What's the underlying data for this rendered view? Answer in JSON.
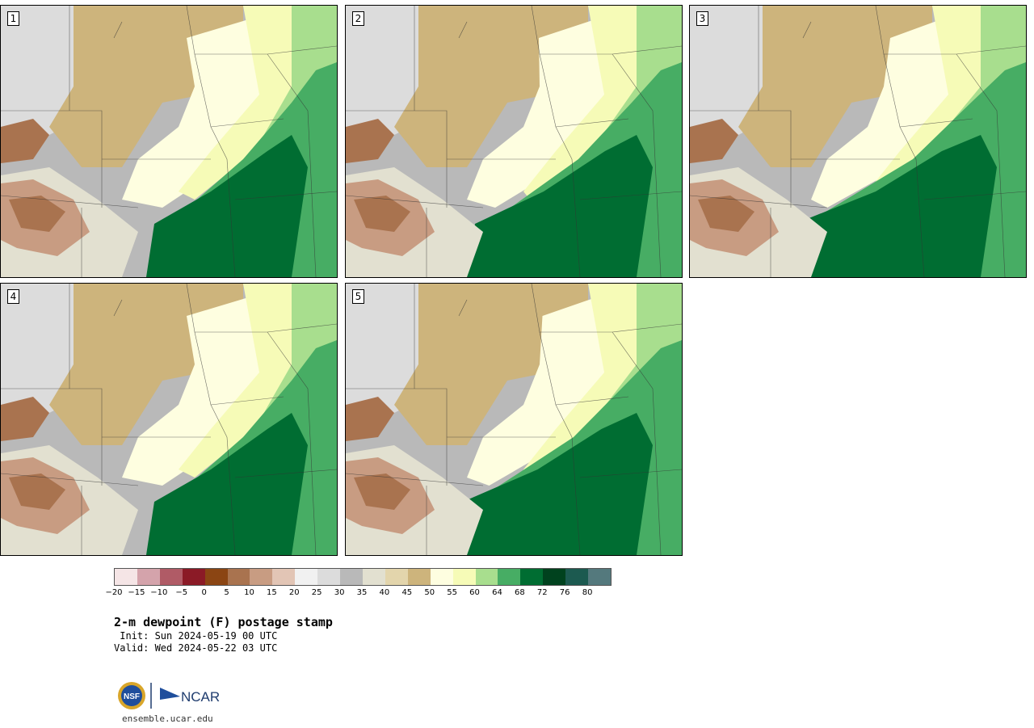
{
  "panels": [
    {
      "label": "1",
      "variant": 0
    },
    {
      "label": "2",
      "variant": 1
    },
    {
      "label": "3",
      "variant": 2
    },
    {
      "label": "4",
      "variant": 3
    },
    {
      "label": "5",
      "variant": 4
    }
  ],
  "colorbar": {
    "colors": [
      "#f5e5e6",
      "#d4a3ab",
      "#b05b66",
      "#8b1a26",
      "#8b4513",
      "#a9734f",
      "#c89c82",
      "#e2c5b5",
      "#f1f1f1",
      "#dcdcdc",
      "#b9b9b9",
      "#e2e0d0",
      "#e3d5ac",
      "#cdb47c",
      "#fefee0",
      "#f6fbb7",
      "#a8de8e",
      "#47ad64",
      "#006d32",
      "#00421e",
      "#1c5a50",
      "#54797d"
    ],
    "ticks": [
      "−20",
      "−15",
      "−10",
      "−5",
      "0",
      "5",
      "10",
      "15",
      "20",
      "25",
      "30",
      "35",
      "40",
      "45",
      "50",
      "55",
      "60",
      "64",
      "68",
      "72",
      "76",
      "80"
    ]
  },
  "title": "2-m dewpoint (F) postage stamp",
  "init": " Init: Sun 2024-05-19 00 UTC",
  "valid": "Valid: Wed 2024-05-22 03 UTC",
  "logos": {
    "nsf": "NSF",
    "ncar": "NCAR"
  },
  "url": "ensemble.ucar.edu"
}
